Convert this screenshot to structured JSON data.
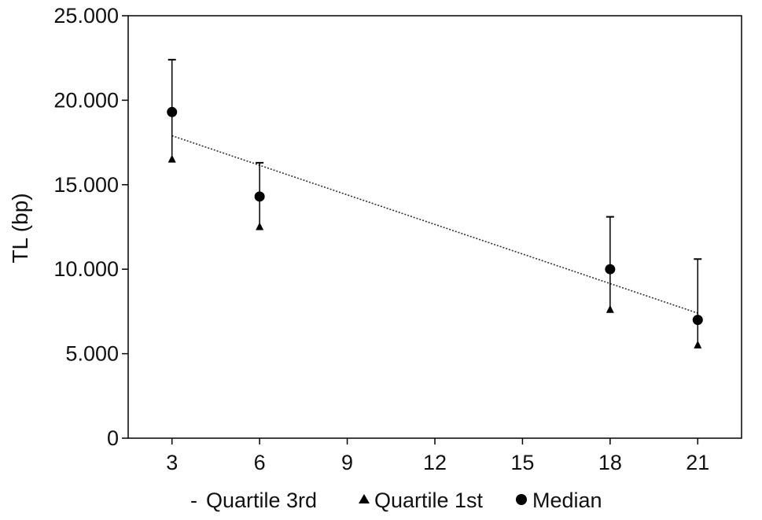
{
  "chart_data": {
    "type": "scatter",
    "title": "",
    "xlabel": "",
    "ylabel": "TL (bp)",
    "x_ticks": [
      3,
      6,
      9,
      12,
      15,
      18,
      21
    ],
    "x_tick_labels": [
      "3",
      "6",
      "9",
      "12",
      "15",
      "18",
      "21"
    ],
    "y_ticks": [
      0,
      5000,
      10000,
      15000,
      20000,
      25000
    ],
    "y_tick_labels": [
      "0",
      "5.000",
      "10.000",
      "15.000",
      "20.000",
      "25.000"
    ],
    "xlim": [
      1.5,
      22.5
    ],
    "ylim": [
      0,
      25000
    ],
    "grid": false,
    "legend_position": "bottom",
    "series": [
      {
        "name": "Quartile 3rd",
        "marker": "dash",
        "x": [
          3,
          6,
          18,
          21
        ],
        "values": [
          22400,
          16300,
          13100,
          10600
        ]
      },
      {
        "name": "Quartile 1st",
        "marker": "triangle",
        "x": [
          3,
          6,
          18,
          21
        ],
        "values": [
          16500,
          12500,
          7600,
          5500
        ]
      },
      {
        "name": "Median",
        "marker": "circle",
        "x": [
          3,
          6,
          18,
          21
        ],
        "values": [
          19300,
          14300,
          10000,
          7000
        ]
      }
    ],
    "trendline": {
      "style": "dotted",
      "x": [
        3,
        21
      ],
      "values": [
        17900,
        7400
      ]
    },
    "legend": {
      "items": [
        {
          "symbol": "-",
          "label": "Quartile 3rd"
        },
        {
          "symbol": "triangle",
          "label": "Quartile 1st"
        },
        {
          "symbol": "circle",
          "label": "Median"
        }
      ]
    },
    "colors": {
      "marker": "#000000",
      "axis": "#000000",
      "trendline": "#333333"
    }
  }
}
